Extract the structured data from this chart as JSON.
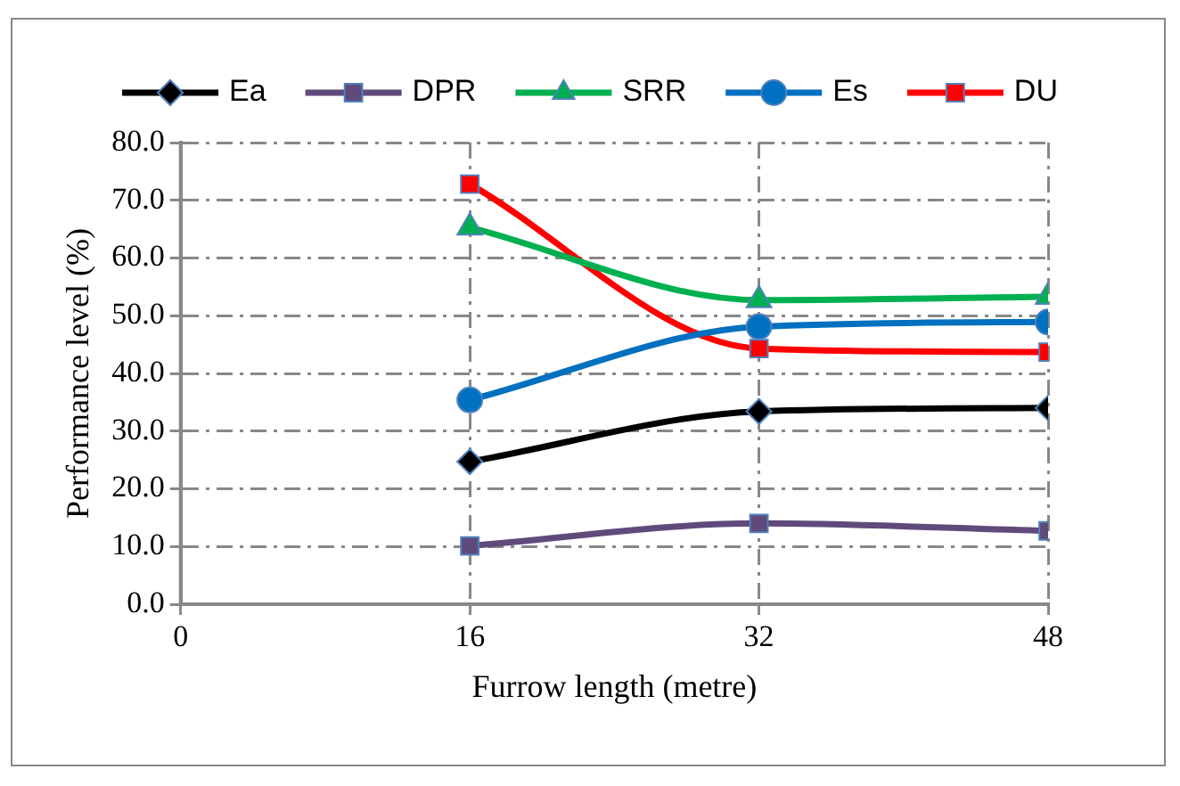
{
  "chart_data": {
    "type": "line",
    "xlabel": "Furrow length (metre)",
    "ylabel": "Performance level (%)",
    "x": [
      16,
      32,
      48
    ],
    "xlim": [
      0,
      48
    ],
    "xticks": [
      0,
      16,
      32,
      48
    ],
    "ylim": [
      0,
      80
    ],
    "yticks": [
      {
        "value": 0,
        "label": "0.0"
      },
      {
        "value": 10,
        "label": "10.0"
      },
      {
        "value": 20,
        "label": "20.0"
      },
      {
        "value": 30,
        "label": "30.0"
      },
      {
        "value": 40,
        "label": "40.0"
      },
      {
        "value": 50,
        "label": "50.0"
      },
      {
        "value": 60,
        "label": "60.0"
      },
      {
        "value": 70,
        "label": "70.0"
      },
      {
        "value": 80,
        "label": "80.0"
      }
    ],
    "grid": true,
    "legend": "top",
    "series": [
      {
        "name": "Ea",
        "color": "#000000",
        "marker": "diamond",
        "values": [
          24.7,
          33.4,
          34.0
        ]
      },
      {
        "name": "DPR",
        "color": "#604a7b",
        "marker": "square",
        "values": [
          10.1,
          14.0,
          12.7
        ]
      },
      {
        "name": "SRR",
        "color": "#00b050",
        "marker": "triangle",
        "values": [
          65.3,
          52.7,
          53.3
        ]
      },
      {
        "name": "Es",
        "color": "#0070c0",
        "marker": "circle",
        "values": [
          35.4,
          48.1,
          48.9
        ]
      },
      {
        "name": "DU",
        "color": "#ff0000",
        "marker": "square",
        "values": [
          72.8,
          44.3,
          43.7
        ]
      }
    ]
  }
}
